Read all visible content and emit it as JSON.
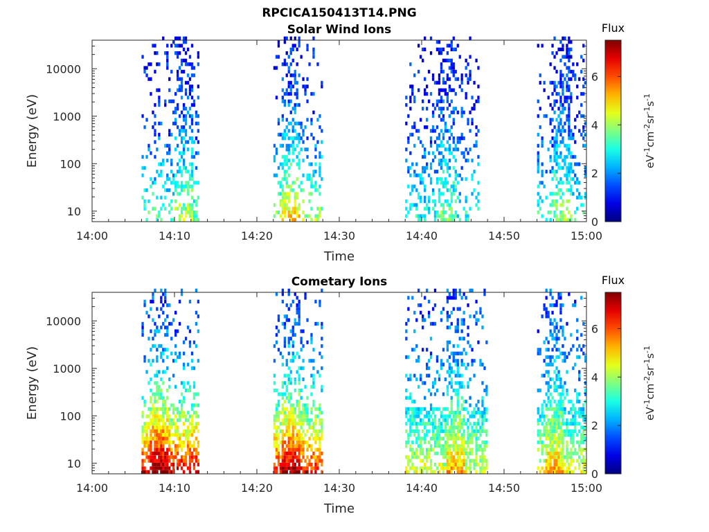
{
  "figure_title": "RPCICA150413T14.PNG",
  "chart_data": [
    {
      "type": "heatmap",
      "title": "Solar Wind Ions",
      "xlabel": "Time",
      "ylabel": "Energy (eV)",
      "x_ticks": [
        "14:00",
        "14:10",
        "14:20",
        "14:30",
        "14:40",
        "14:50",
        "15:00"
      ],
      "x_range": [
        "14:00",
        "15:00"
      ],
      "y_scale": "log",
      "y_ticks": [
        "10",
        "100",
        "1000",
        "10000"
      ],
      "y_range": [
        6,
        40000
      ],
      "colorbar": {
        "title": "Flux",
        "unit": "eV-1cm-2sr-1s-1",
        "ticks": [
          "0",
          "2",
          "4",
          "6"
        ],
        "range": [
          0,
          7.5
        ],
        "colormap": "jet"
      },
      "bursts": [
        {
          "start": "14:06",
          "end": "14:13",
          "core": "14:11",
          "flux_low_energy": 3.5,
          "flux_high_energy": 1.0
        },
        {
          "start": "14:22",
          "end": "14:28",
          "core": "14:24",
          "flux_low_energy": 4.2,
          "flux_high_energy": 1.0
        },
        {
          "start": "14:38",
          "end": "14:47",
          "core": "14:43",
          "flux_low_energy": 3.0,
          "flux_high_energy": 1.0
        },
        {
          "start": "14:54",
          "end": "15:00",
          "core": "14:57",
          "flux_low_energy": 3.2,
          "flux_high_energy": 1.0
        }
      ]
    },
    {
      "type": "heatmap",
      "title": "Cometary Ions",
      "xlabel": "Time",
      "ylabel": "Energy (eV)",
      "x_ticks": [
        "14:00",
        "14:10",
        "14:20",
        "14:30",
        "14:40",
        "14:50",
        "15:00"
      ],
      "x_range": [
        "14:00",
        "15:00"
      ],
      "y_scale": "log",
      "y_ticks": [
        "10",
        "100",
        "1000",
        "10000"
      ],
      "y_range": [
        6,
        40000
      ],
      "colorbar": {
        "title": "Flux",
        "unit": "eV-1cm-2sr-1s-1",
        "ticks": [
          "0",
          "2",
          "4",
          "6"
        ],
        "range": [
          0,
          7.5
        ],
        "colormap": "jet"
      },
      "bursts": [
        {
          "start": "14:06",
          "end": "14:13",
          "core": "14:08",
          "flux_low_energy": 6.8,
          "flux_high_energy": 1.5
        },
        {
          "start": "14:22",
          "end": "14:28",
          "core": "14:24",
          "flux_low_energy": 6.5,
          "flux_high_energy": 1.5
        },
        {
          "start": "14:38",
          "end": "14:48",
          "core": "14:44",
          "flux_low_energy": 4.5,
          "flux_high_energy": 1.5
        },
        {
          "start": "14:54",
          "end": "15:00",
          "core": "14:56",
          "flux_low_energy": 4.5,
          "flux_high_energy": 1.5
        }
      ]
    }
  ]
}
